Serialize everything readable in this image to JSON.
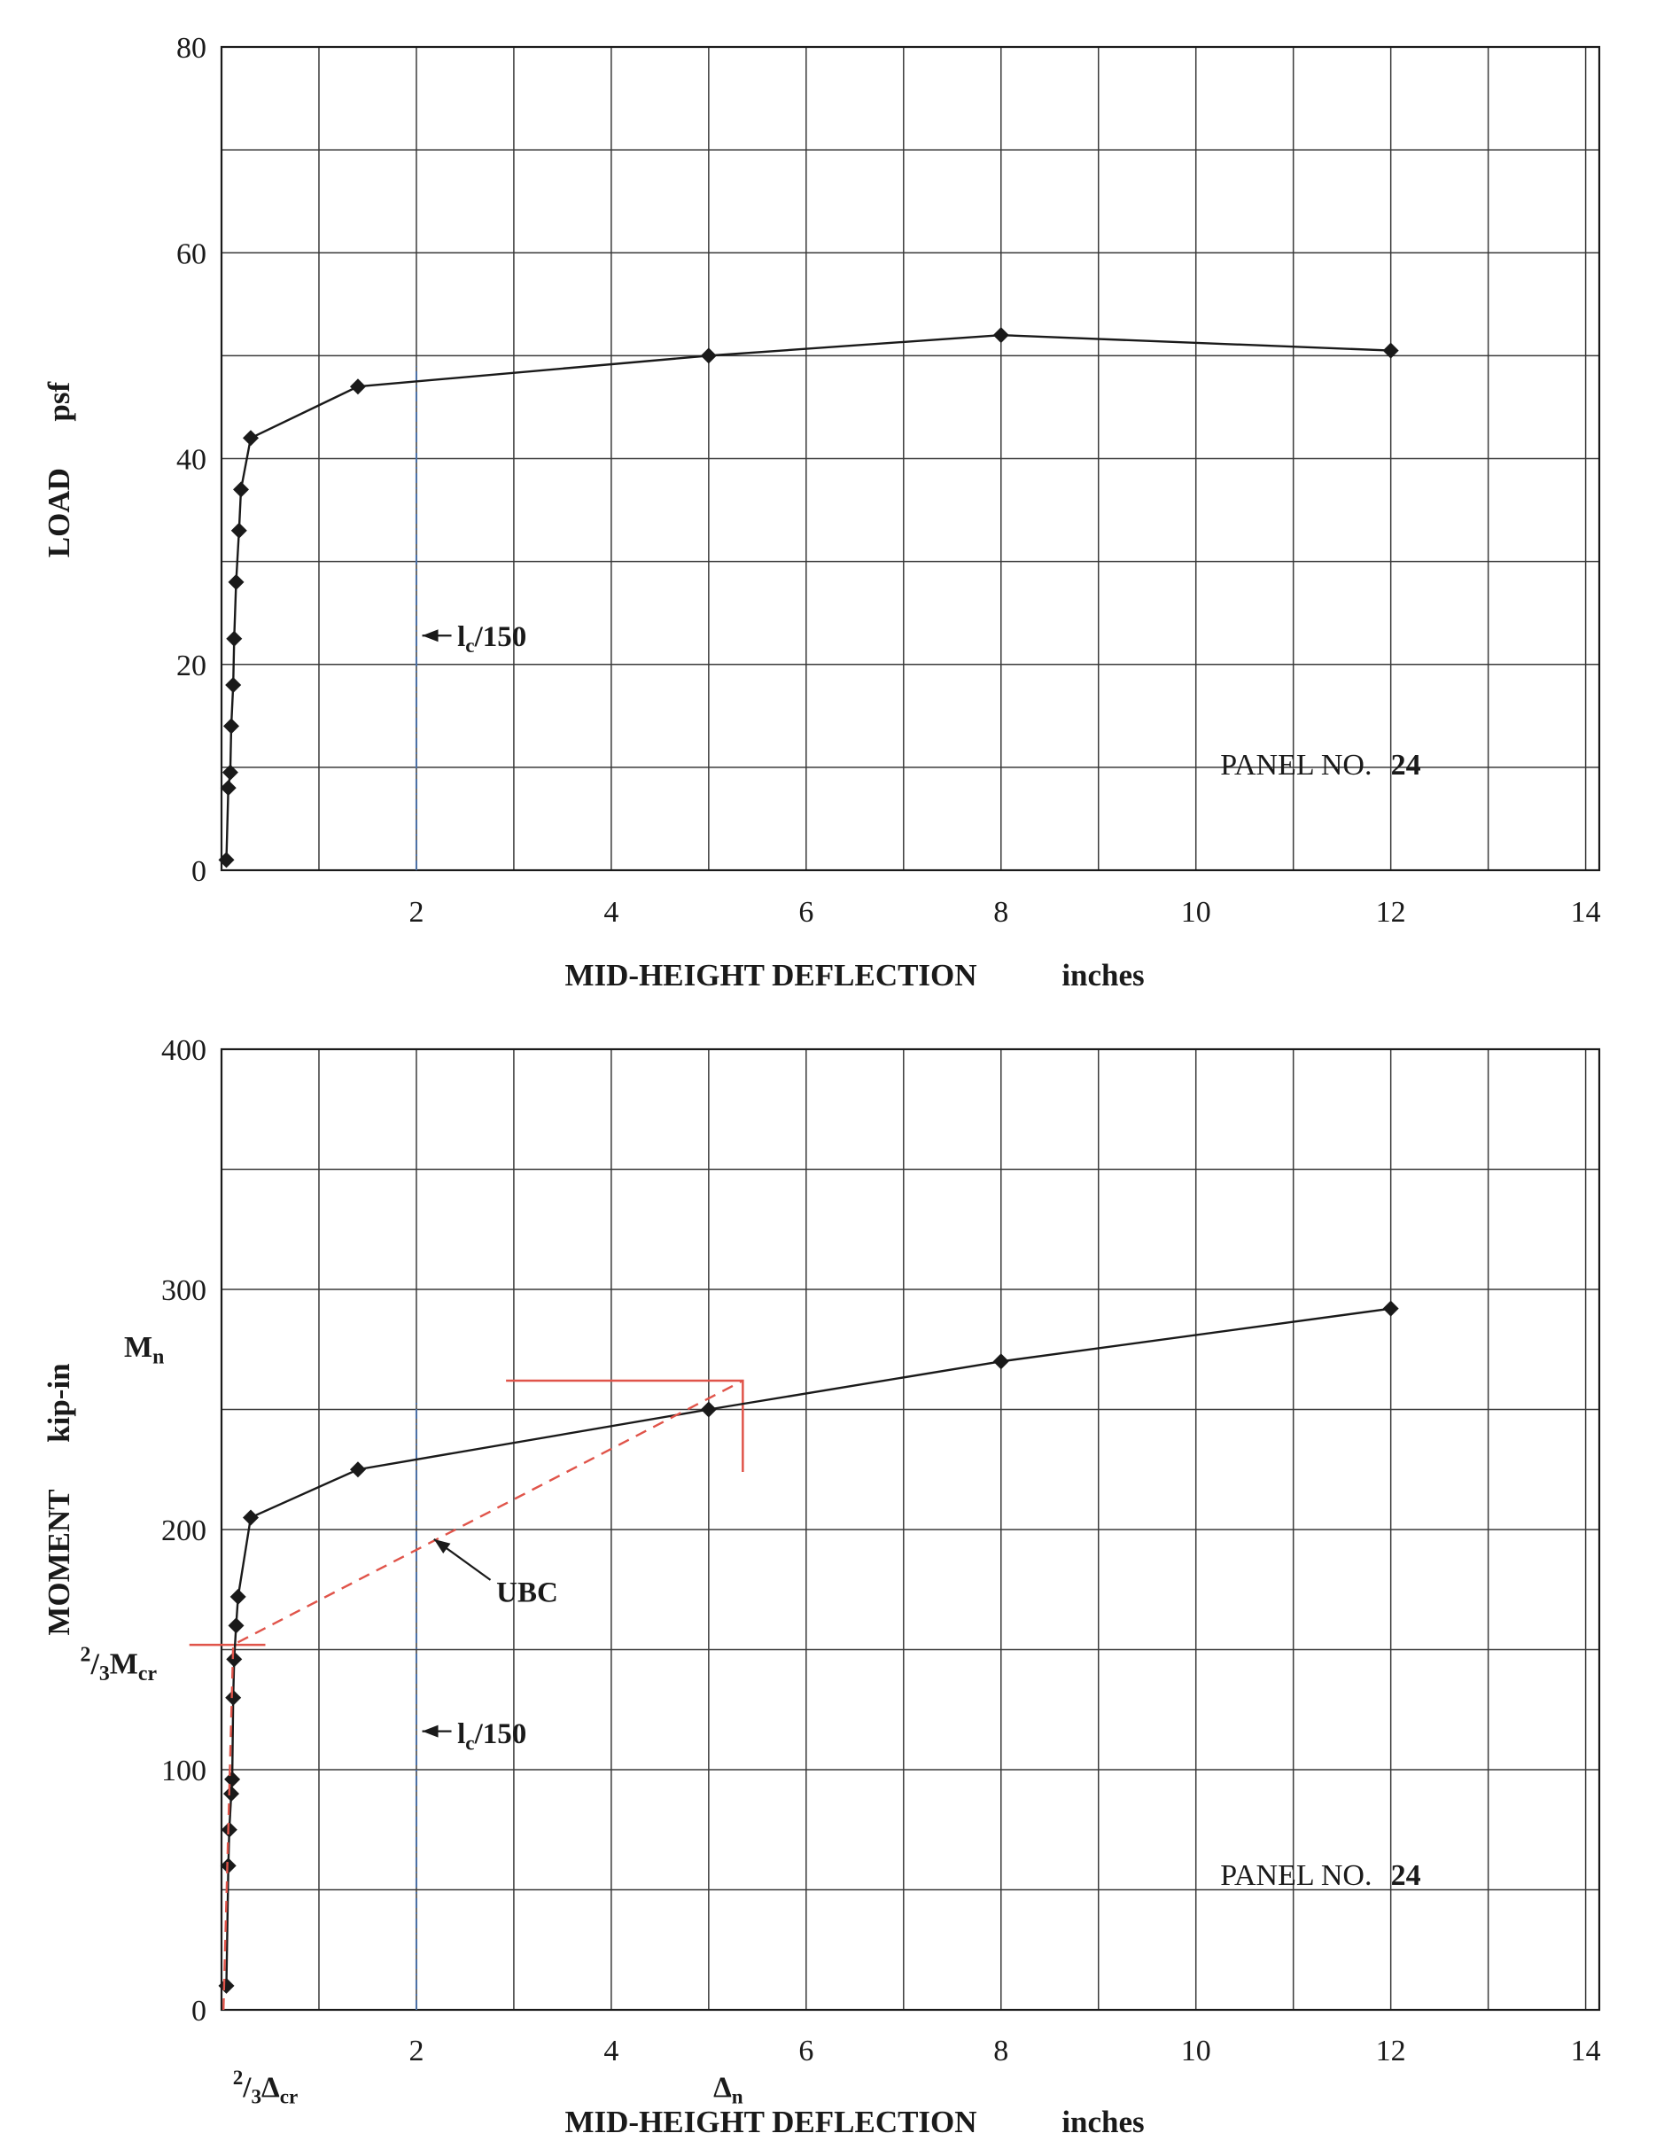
{
  "page": {
    "background": "#ffffff",
    "ink": "#1a1a1a",
    "grid_color": "#3a3a3a",
    "accent_red": "#e0544a",
    "accent_blue": "#4a6fa5"
  },
  "panel": {
    "label": "PANEL NO.",
    "number": "24"
  },
  "chart_data": [
    {
      "id": "load-vs-deflection",
      "type": "line",
      "title": "",
      "xlabel": "MID-HEIGHT DEFLECTION",
      "x_units": "inches",
      "ylabel": "LOAD",
      "y_units": "psf",
      "xlim": [
        0,
        14.14
      ],
      "ylim": [
        0,
        80
      ],
      "grid": true,
      "x_grid_step": 1,
      "y_grid_step": 10,
      "x_tick_labels": [
        2,
        4,
        6,
        8,
        10,
        12,
        14
      ],
      "y_tick_labels": [
        0,
        20,
        40,
        60,
        80
      ],
      "series": [
        {
          "name": "measured-load-deflection",
          "color": "#1a1a1a",
          "marker": "diamond",
          "line": "solid",
          "points": [
            [
              0.05,
              1
            ],
            [
              0.07,
              8
            ],
            [
              0.09,
              9.5
            ],
            [
              0.1,
              14
            ],
            [
              0.12,
              18
            ],
            [
              0.13,
              22.5
            ],
            [
              0.15,
              28
            ],
            [
              0.18,
              33
            ],
            [
              0.2,
              37
            ],
            [
              0.3,
              42
            ],
            [
              1.4,
              47
            ],
            [
              5,
              50
            ],
            [
              8,
              52
            ],
            [
              12,
              50.5
            ]
          ]
        }
      ],
      "annotations": [
        {
          "type": "vline",
          "name": "lc-over-150-limit-line",
          "x": 2,
          "y0": 0,
          "y1": 49,
          "style": "dashdot",
          "color": "#4a6fa5"
        },
        {
          "type": "arrow-label",
          "name": "lc-over-150-label",
          "text": "l_{c}/150",
          "tx": 2.42,
          "ty": 21.8,
          "ax0": 2.36,
          "ay0": 22.8,
          "ax1": 2.06,
          "ay1": 22.8,
          "color": "#1a1a1a"
        },
        {
          "type": "text",
          "name": "panel-no-label",
          "text": "PANEL NO.",
          "x": 10.25,
          "y": 9.3,
          "bold": false,
          "anchor": "start"
        },
        {
          "type": "text",
          "name": "panel-no-value",
          "text": "24",
          "x": 12.0,
          "y": 9.3,
          "bold": true,
          "anchor": "start"
        }
      ]
    },
    {
      "id": "moment-vs-deflection",
      "type": "line",
      "title": "",
      "xlabel": "MID-HEIGHT DEFLECTION",
      "x_units": "inches",
      "ylabel": "MOMENT",
      "y_units": "kip-in",
      "xlim": [
        0,
        14.14
      ],
      "ylim": [
        0,
        400
      ],
      "grid": true,
      "x_grid_step": 1,
      "y_grid_step": 50,
      "x_tick_labels": [
        2,
        4,
        6,
        8,
        10,
        12,
        14
      ],
      "y_tick_labels": [
        0,
        100,
        200,
        300,
        400
      ],
      "series": [
        {
          "name": "measured-moment-deflection",
          "color": "#1a1a1a",
          "marker": "diamond",
          "line": "solid",
          "points": [
            [
              0.05,
              10
            ],
            [
              0.07,
              60
            ],
            [
              0.08,
              75
            ],
            [
              0.1,
              90
            ],
            [
              0.11,
              96
            ],
            [
              0.12,
              130
            ],
            [
              0.13,
              146
            ],
            [
              0.15,
              160
            ],
            [
              0.17,
              172
            ],
            [
              0.3,
              205
            ],
            [
              1.4,
              225
            ],
            [
              5,
              250
            ],
            [
              8,
              270
            ],
            [
              12,
              292
            ]
          ]
        },
        {
          "name": "ubc-bilinear-approximation",
          "color": "#e0544a",
          "marker": "none",
          "line": "dashed",
          "points": [
            [
              0.02,
              0
            ],
            [
              0.12,
              152
            ],
            [
              5.35,
              262
            ]
          ]
        }
      ],
      "annotations": [
        {
          "type": "vline",
          "name": "lc-over-150-limit-line",
          "x": 2,
          "y0": 0,
          "y1": 253,
          "style": "dashdot",
          "color": "#4a6fa5"
        },
        {
          "type": "arrow-label",
          "name": "lc-over-150-label",
          "text": "l_{c}/150",
          "tx": 2.42,
          "ty": 111,
          "ax0": 2.36,
          "ay0": 116,
          "ax1": 2.06,
          "ay1": 116,
          "color": "#1a1a1a"
        },
        {
          "type": "arrow-label",
          "name": "ubc-label",
          "text": "UBC",
          "tx": 2.82,
          "ty": 170,
          "ax0": 2.76,
          "ay0": 179,
          "ax1": 2.18,
          "ay1": 196,
          "color": "#1a1a1a"
        },
        {
          "type": "segment",
          "name": "mn-delta-n-construction-line",
          "color": "#e0544a",
          "width": 2.5,
          "points": [
            [
              2.92,
              262
            ],
            [
              5.35,
              262
            ],
            [
              5.35,
              224
            ]
          ]
        },
        {
          "type": "segment",
          "name": "two-thirds-mcr-tick-line",
          "color": "#e0544a",
          "width": 2.5,
          "points": [
            [
              -0.33,
              152
            ],
            [
              0.45,
              152
            ]
          ]
        },
        {
          "type": "text",
          "name": "mn-label",
          "text": "M_{n}",
          "x": -1.0,
          "y": 272,
          "bold": true,
          "anchor": "start"
        },
        {
          "type": "text",
          "name": "two-thirds-mcr-label",
          "text": "^{2}/_{3}M_{cr}",
          "x": -1.45,
          "y": 140,
          "bold": true,
          "anchor": "start"
        },
        {
          "type": "text",
          "name": "panel-no-label",
          "text": "PANEL NO.",
          "x": 10.25,
          "y": 52,
          "bold": false,
          "anchor": "start"
        },
        {
          "type": "text",
          "name": "panel-no-value",
          "text": "24",
          "x": 12.0,
          "y": 52,
          "bold": true,
          "anchor": "start"
        },
        {
          "type": "xsub-label",
          "name": "two-thirds-delta-cr-label",
          "text": "^{2}/_{3}Δ_{cr}",
          "x": 0.45
        },
        {
          "type": "xsub-label",
          "name": "delta-n-label",
          "text": "Δ_{n}",
          "x": 5.2
        }
      ]
    }
  ]
}
